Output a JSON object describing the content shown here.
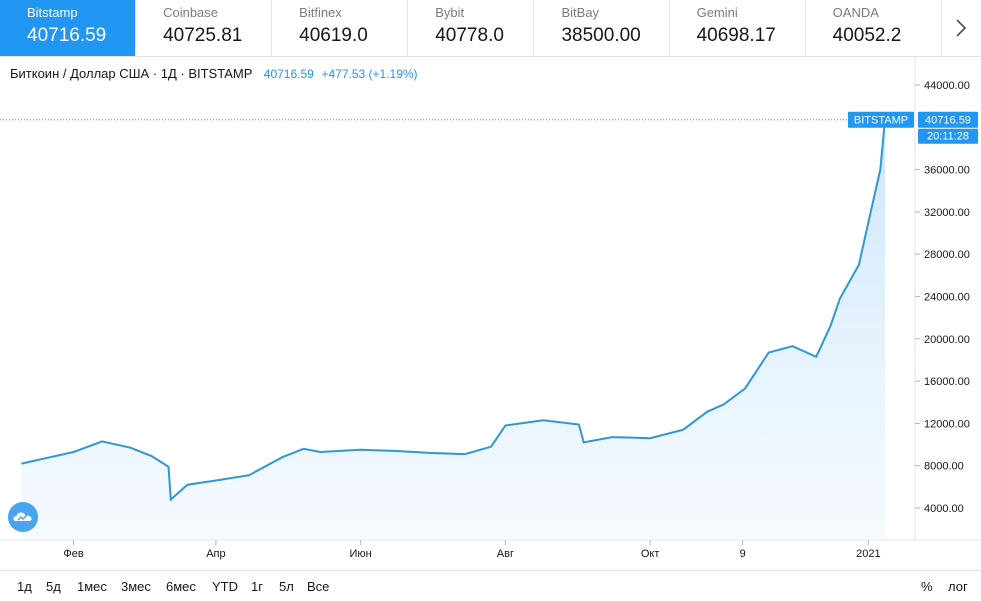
{
  "tabs": [
    {
      "name": "Bitstamp",
      "price": "40716.59",
      "active": true
    },
    {
      "name": "Coinbase",
      "price": "40725.81"
    },
    {
      "name": "Bitfinex",
      "price": "40619.0"
    },
    {
      "name": "Bybit",
      "price": "40778.0"
    },
    {
      "name": "BitBay",
      "price": "38500.00"
    },
    {
      "name": "Gemini",
      "price": "40698.17"
    },
    {
      "name": "OANDA",
      "price": "40052.2"
    }
  ],
  "legend": {
    "symbol": "Биткоин / Доллар США · 1Д · BITSTAMP",
    "last": "40716.59",
    "change": "+477.53 (+1.19%)"
  },
  "price_badge": {
    "exchange": "BITSTAMP",
    "price": "40716.59",
    "countdown": "20:11:28"
  },
  "ranges": [
    "1д",
    "5д",
    "1мес",
    "3мес",
    "6мес",
    "YTD",
    "1г",
    "5л",
    "Все"
  ],
  "scale_options": {
    "percent": "%",
    "log": "лог"
  },
  "colors": {
    "accent": "#2196f3",
    "line": "#2f96d9",
    "positive": "#26a69a"
  },
  "icons": {
    "next": "chevron-right-icon",
    "logo": "tradingview-logo-icon"
  },
  "chart_data": {
    "type": "area",
    "series": [
      {
        "x": [
          "2020-01-10",
          "2020-01-20",
          "2020-02-01",
          "2020-02-13",
          "2020-02-25",
          "2020-03-05",
          "2020-03-12",
          "2020-03-13",
          "2020-03-20",
          "2020-04-01",
          "2020-04-15",
          "2020-04-29",
          "2020-05-08",
          "2020-05-15",
          "2020-06-01",
          "2020-06-15",
          "2020-07-01",
          "2020-07-15",
          "2020-07-26",
          "2020-08-01",
          "2020-08-17",
          "2020-09-01",
          "2020-09-03",
          "2020-09-15",
          "2020-10-01",
          "2020-10-15",
          "2020-10-25",
          "2020-11-01",
          "2020-11-10",
          "2020-11-20",
          "2020-11-30",
          "2020-12-10",
          "2020-12-16",
          "2020-12-20",
          "2020-12-28",
          "2021-01-03",
          "2021-01-06",
          "2021-01-08"
        ],
        "values": [
          8200,
          8700,
          9300,
          10300,
          9700,
          8900,
          7900,
          4800,
          6200,
          6600,
          7100,
          8800,
          9600,
          9300,
          9500,
          9400,
          9200,
          9100,
          9800,
          11800,
          12300,
          11900,
          10200,
          10700,
          10600,
          11400,
          13100,
          13800,
          15300,
          18700,
          19300,
          18300,
          21200,
          23800,
          27000,
          33000,
          36000,
          40716.59
        ]
      }
    ],
    "x_ticks": [
      "Фев",
      "Апр",
      "Июн",
      "Авг",
      "Окт",
      "9",
      "2021"
    ],
    "y_ticks": [
      "44000.00",
      "36000.00",
      "32000.00",
      "28000.00",
      "24000.00",
      "20000.00",
      "16000.00",
      "12000.00",
      "8000.00",
      "4000.00"
    ],
    "ylim": [
      0,
      46000
    ],
    "grid": false,
    "current_price_line": 40716.59
  }
}
